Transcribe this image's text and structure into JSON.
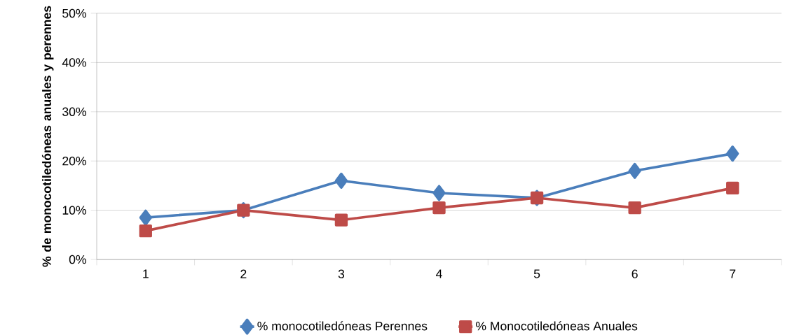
{
  "chart_data": {
    "type": "line",
    "ylabel": "% de monocotiledóneas anuales y perennes",
    "categories": [
      "1",
      "2",
      "3",
      "4",
      "5",
      "6",
      "7"
    ],
    "series": [
      {
        "name": "% monocotiledóneas Perennes",
        "color": "#4a7ebb",
        "marker": "diamond",
        "values": [
          8.5,
          10,
          16,
          13.5,
          12.5,
          18,
          21.5
        ]
      },
      {
        "name": "% Monocotiledóneas Anuales",
        "color": "#be4b48",
        "marker": "square",
        "values": [
          5.8,
          10,
          8,
          10.5,
          12.5,
          10.5,
          14.5
        ]
      }
    ],
    "ylim": [
      0,
      50
    ],
    "yticks": [
      {
        "value": 0,
        "label": "0%"
      },
      {
        "value": 10,
        "label": "10%"
      },
      {
        "value": 20,
        "label": "20%"
      },
      {
        "value": 30,
        "label": "30%"
      },
      {
        "value": 40,
        "label": "40%"
      },
      {
        "value": 50,
        "label": "50%"
      }
    ],
    "grid": "y",
    "legend": "bottom",
    "line_style": "solid"
  }
}
